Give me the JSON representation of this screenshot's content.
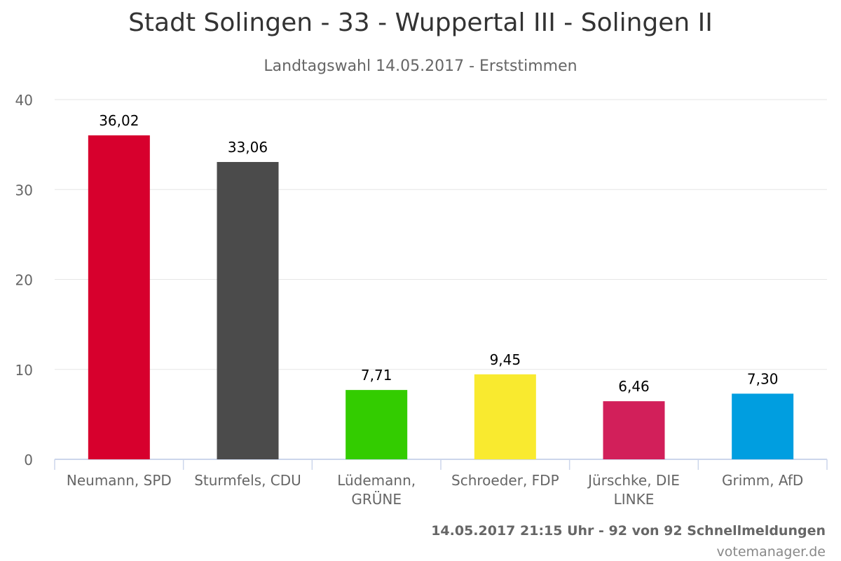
{
  "chart_data": {
    "type": "bar",
    "title": "Stadt Solingen - 33 - Wuppertal III - Solingen II",
    "subtitle": "Landtagswahl 14.05.2017 - Erststimmen",
    "categories": [
      "Neumann, SPD",
      "Sturmfels, CDU",
      "Lüdemann, GRÜNE",
      "Schroeder, FDP",
      "Jürschke, DIE LINKE",
      "Grimm, AfD"
    ],
    "values": [
      36.02,
      33.06,
      7.71,
      9.45,
      6.46,
      7.3
    ],
    "value_labels": [
      "36,02",
      "33,06",
      "7,71",
      "9,45",
      "6,46",
      "7,30"
    ],
    "colors": [
      "#d7002d",
      "#4b4b4b",
      "#33cc00",
      "#f9ea2f",
      "#d21f5a",
      "#009ee0"
    ],
    "ylim": [
      0,
      40
    ],
    "yticks": [
      0,
      10,
      20,
      30,
      40
    ],
    "xlabel": "",
    "ylabel": "",
    "grid": true,
    "legend": "none"
  },
  "footer": {
    "status": "14.05.2017 21:15 Uhr - 92 von 92 Schnellmeldungen",
    "credit": "votemanager.de"
  }
}
